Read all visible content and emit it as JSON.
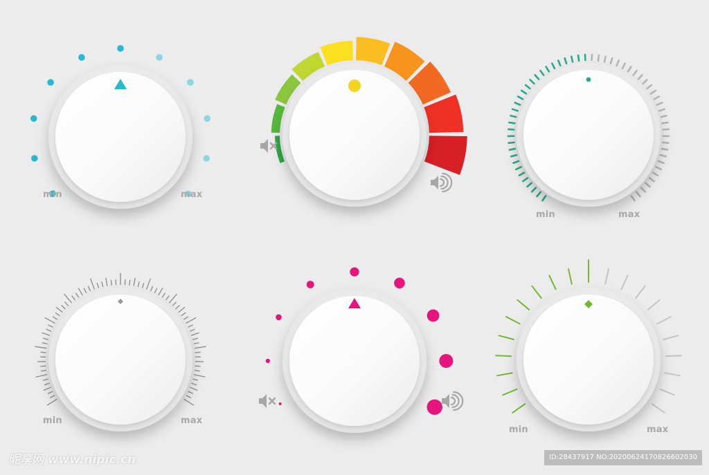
{
  "knobs": [
    {
      "id": "knob-1",
      "style": "blue-dots",
      "accent": "#29b8d2",
      "min_label": "min",
      "max_label": "max",
      "level": 0.5
    },
    {
      "id": "knob-2",
      "style": "volume-color-arc",
      "indicator_color": "#f5d51f",
      "mute_icon": "speaker-mute-icon",
      "loud_icon": "speaker-loud-icon",
      "arc_colors": [
        "#2fa843",
        "#56b93a",
        "#8cc63f",
        "#bfd730",
        "#fde01f",
        "#fbbe22",
        "#f7941d",
        "#f26a22",
        "#ee3124",
        "#d71f26"
      ]
    },
    {
      "id": "knob-3",
      "style": "teal-ticks",
      "accent": "#2aa98e",
      "min_label": "min",
      "max_label": "max",
      "level": 0.5
    },
    {
      "id": "knob-4",
      "style": "gray-ruler",
      "accent": "#8c8c8c",
      "min_label": "min",
      "max_label": "max",
      "level": 0.5
    },
    {
      "id": "knob-5",
      "style": "pink-dots",
      "accent": "#e6157d",
      "mute_icon": "speaker-mute-icon",
      "loud_icon": "speaker-loud-icon",
      "level": 0.5
    },
    {
      "id": "knob-6",
      "style": "green-lines",
      "accent": "#73b72f",
      "min_label": "min",
      "max_label": "max",
      "level": 0.5
    }
  ],
  "watermark": {
    "site": "昵享网 www.nipic.cn",
    "id_text": "ID:28437917 NO:20200624170826602030"
  }
}
